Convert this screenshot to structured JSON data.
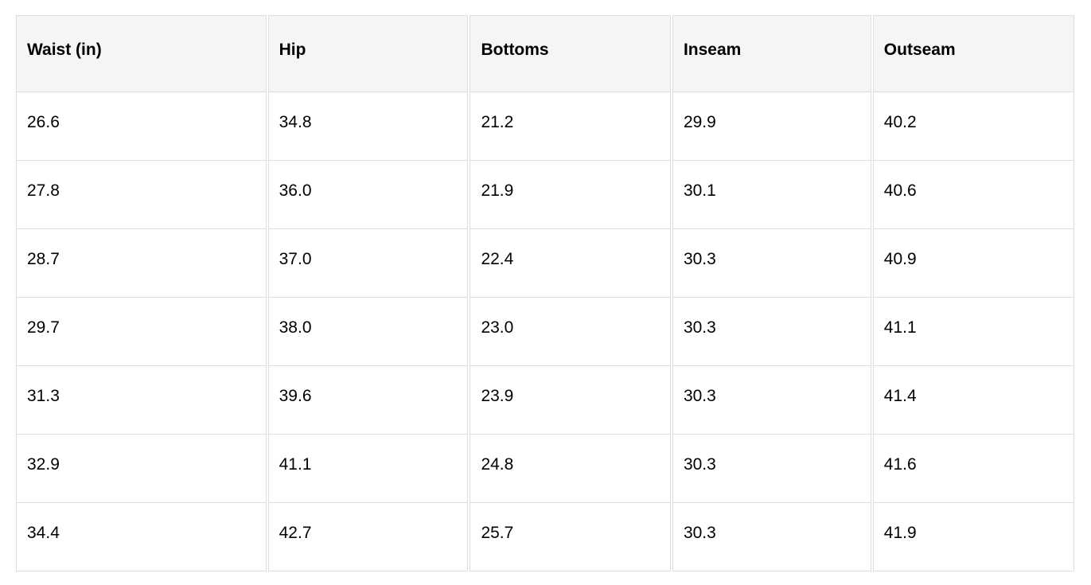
{
  "table": {
    "columns": [
      "Waist (in)",
      "Hip",
      "Bottoms",
      "Inseam",
      "Outseam"
    ],
    "rows": [
      [
        "26.6",
        "34.8",
        "21.2",
        "29.9",
        "40.2"
      ],
      [
        "27.8",
        "36.0",
        "21.9",
        "30.1",
        "40.6"
      ],
      [
        "28.7",
        "37.0",
        "22.4",
        "30.3",
        "40.9"
      ],
      [
        "29.7",
        "38.0",
        "23.0",
        "30.3",
        "41.1"
      ],
      [
        "31.3",
        "39.6",
        "23.9",
        "30.3",
        "41.4"
      ],
      [
        "32.9",
        "41.1",
        "24.8",
        "30.3",
        "41.6"
      ],
      [
        "34.4",
        "42.7",
        "25.7",
        "30.3",
        "41.9"
      ]
    ]
  },
  "colors": {
    "page_bg": "#ffffff",
    "header_bg": "#f5f5f5",
    "border": "#dddddd",
    "text": "#000000"
  }
}
